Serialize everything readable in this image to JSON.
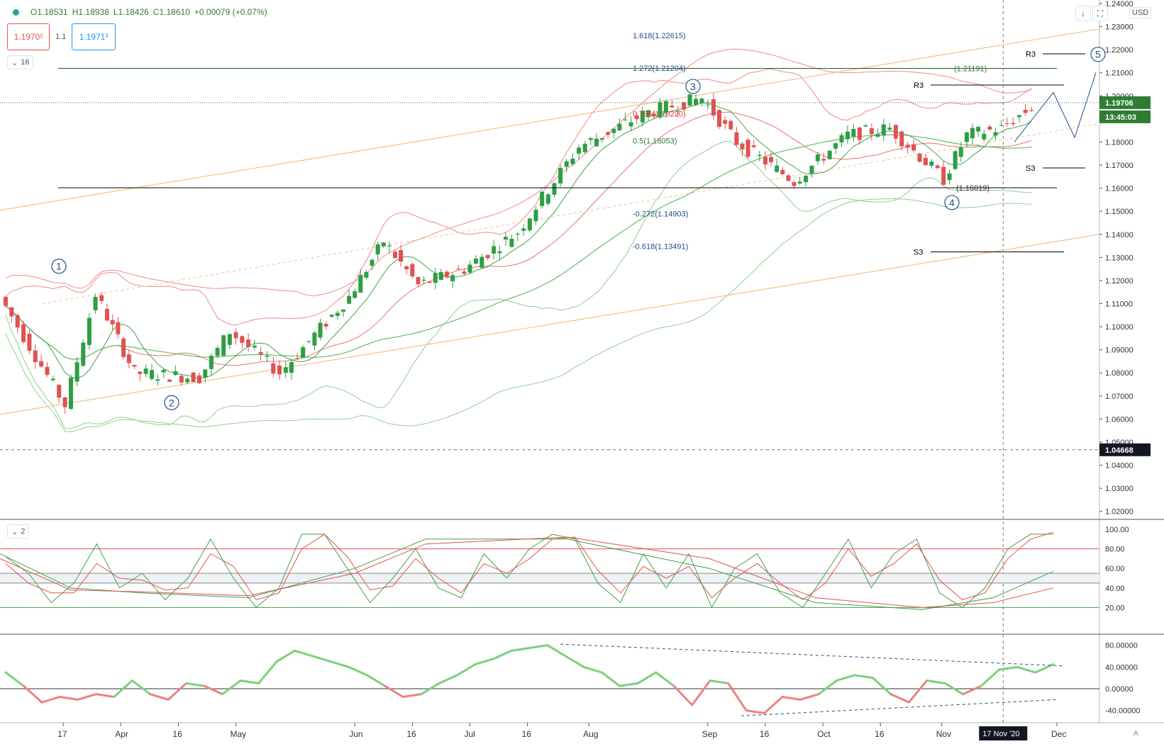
{
  "header": {
    "ohlc": {
      "open": "O1.18531",
      "high": "H1.18938",
      "low": "L1.18426",
      "close": "C1.18610",
      "change": "+0.00079 (+0.07%)"
    },
    "sell_price": "1.1970²",
    "spread": "1.1",
    "buy_price": "1.1971³",
    "interval_badge": "16",
    "currency": "USD",
    "stoch_badge": "2",
    "auto_label": "A"
  },
  "colors": {
    "up": "#2e9e44",
    "down": "#e05252",
    "bb_red": "#ef8a8a",
    "bb_green": "#8fcf8f",
    "fib": "#1e4e8c",
    "channel": "#f7c08a"
  },
  "chart_data": [
    {
      "type": "candlestick",
      "instrument": "EUR/USD daily",
      "price_axis": {
        "ticks": [
          "1.24000",
          "1.23000",
          "1.22000",
          "1.21000",
          "1.20000",
          "1.19000",
          "1.18000",
          "1.17000",
          "1.16000",
          "1.15000",
          "1.14000",
          "1.13000",
          "1.12000",
          "1.11000",
          "1.10000",
          "1.09000",
          "1.08000",
          "1.07000",
          "1.06000",
          "1.05000",
          "1.04000",
          "1.03000",
          "1.02000"
        ],
        "ylim": [
          1.015,
          1.24
        ]
      },
      "time_axis": {
        "ticks": [
          "17",
          "Apr",
          "16",
          "May",
          "Jun",
          "16",
          "Jul",
          "16",
          "Aug",
          "Sep",
          "16",
          "Oct",
          "16",
          "Nov",
          "Dec"
        ],
        "crosshair_label": "17 Nov '20"
      },
      "price_labels": {
        "last": "1.19706",
        "countdown": "13:45:03",
        "crosshair": "1.04668"
      },
      "fib_levels": [
        {
          "label": "1.618(1.22615)",
          "value": 1.22615
        },
        {
          "label": "1.272(1.21204)",
          "value": 1.21204
        },
        {
          "label": "0.786(1.19220)",
          "value": 1.1922
        },
        {
          "label": "0.5(1.18053)",
          "value": 1.18053
        },
        {
          "label": "-0.272(1.14903)",
          "value": 1.14903
        },
        {
          "label": "-0.618(1.13491)",
          "value": 1.13491
        }
      ],
      "level_labels": [
        {
          "label": "(1.21191)",
          "value": 1.21191
        },
        {
          "label": "(1.16019)",
          "value": 1.16019
        }
      ],
      "pivots": [
        {
          "label": "R3",
          "value": 1.2182
        },
        {
          "label": "R3",
          "value": 1.2047
        },
        {
          "label": "S3",
          "value": 1.1688
        },
        {
          "label": "S3",
          "value": 1.1324
        }
      ],
      "waves": [
        {
          "label": "1",
          "value": 1.1262
        },
        {
          "label": "2",
          "value": 1.0671
        },
        {
          "label": "3",
          "value": 1.2041
        },
        {
          "label": "4",
          "value": 1.1538
        },
        {
          "label": "5",
          "value": 1.218
        }
      ],
      "key_points": [
        {
          "date": "2020-03-02",
          "close": 1.113
        },
        {
          "date": "2020-03-19",
          "close": 1.066
        },
        {
          "date": "2020-03-27",
          "close": 1.114
        },
        {
          "date": "2020-04-06",
          "close": 1.08
        },
        {
          "date": "2020-04-23",
          "close": 1.078
        },
        {
          "date": "2020-05-01",
          "close": 1.098
        },
        {
          "date": "2020-05-14",
          "close": 1.08
        },
        {
          "date": "2020-06-01",
          "close": 1.113
        },
        {
          "date": "2020-06-10",
          "close": 1.137
        },
        {
          "date": "2020-06-19",
          "close": 1.118
        },
        {
          "date": "2020-07-01",
          "close": 1.125
        },
        {
          "date": "2020-07-15",
          "close": 1.141
        },
        {
          "date": "2020-07-31",
          "close": 1.178
        },
        {
          "date": "2020-08-18",
          "close": 1.193
        },
        {
          "date": "2020-09-01",
          "close": 1.199
        },
        {
          "date": "2020-09-10",
          "close": 1.18
        },
        {
          "date": "2020-09-25",
          "close": 1.163
        },
        {
          "date": "2020-10-09",
          "close": 1.183
        },
        {
          "date": "2020-10-20",
          "close": 1.186
        },
        {
          "date": "2020-11-03",
          "close": 1.164
        },
        {
          "date": "2020-11-09",
          "close": 1.183
        },
        {
          "date": "2020-11-18",
          "close": 1.186
        },
        {
          "date": "2020-11-26",
          "close": 1.195
        }
      ]
    },
    {
      "type": "line",
      "indicator": "stochastic",
      "y_axis": {
        "ticks": [
          "100.00",
          "80.00",
          "60.00",
          "40.00",
          "20.00"
        ],
        "ylim": [
          0,
          100
        ]
      },
      "reference_lines": [
        80,
        55,
        45,
        20
      ],
      "series": [
        {
          "color": "#43a047",
          "values": [
            72,
            55,
            25,
            45,
            85,
            40,
            55,
            28,
            50,
            90,
            50,
            20,
            40,
            95,
            95,
            60,
            25,
            50,
            80,
            40,
            30,
            75,
            50,
            80,
            95,
            90,
            45,
            25,
            75,
            40,
            75,
            20,
            60,
            75,
            35,
            20,
            55,
            90,
            40,
            75,
            90,
            35,
            20,
            40,
            80,
            95,
            95
          ]
        },
        {
          "color": "#e05252",
          "values": [
            65,
            45,
            35,
            35,
            65,
            50,
            48,
            38,
            40,
            75,
            62,
            28,
            35,
            80,
            95,
            72,
            38,
            42,
            70,
            50,
            35,
            65,
            55,
            70,
            90,
            92,
            58,
            35,
            62,
            50,
            62,
            30,
            50,
            65,
            45,
            28,
            45,
            80,
            52,
            65,
            85,
            48,
            28,
            35,
            70,
            90,
            97
          ]
        }
      ]
    },
    {
      "type": "line",
      "indicator": "momentum oscillator",
      "y_axis": {
        "ticks": [
          "80.00000",
          "40.00000",
          "0.00000",
          "-40.00000"
        ],
        "ylim": [
          -60,
          100
        ]
      },
      "series": [
        {
          "values": [
            30,
            5,
            -25,
            -15,
            -20,
            -10,
            -15,
            15,
            -10,
            -20,
            10,
            5,
            -10,
            15,
            10,
            50,
            70,
            60,
            50,
            40,
            25,
            5,
            -15,
            -10,
            10,
            25,
            45,
            55,
            70,
            75,
            80,
            60,
            40,
            30,
            5,
            10,
            30,
            5,
            -30,
            15,
            10,
            -40,
            -45,
            -15,
            -20,
            -10,
            15,
            25,
            20,
            -10,
            -25,
            15,
            10,
            -10,
            5,
            35,
            40,
            30,
            45
          ]
        }
      ]
    }
  ]
}
